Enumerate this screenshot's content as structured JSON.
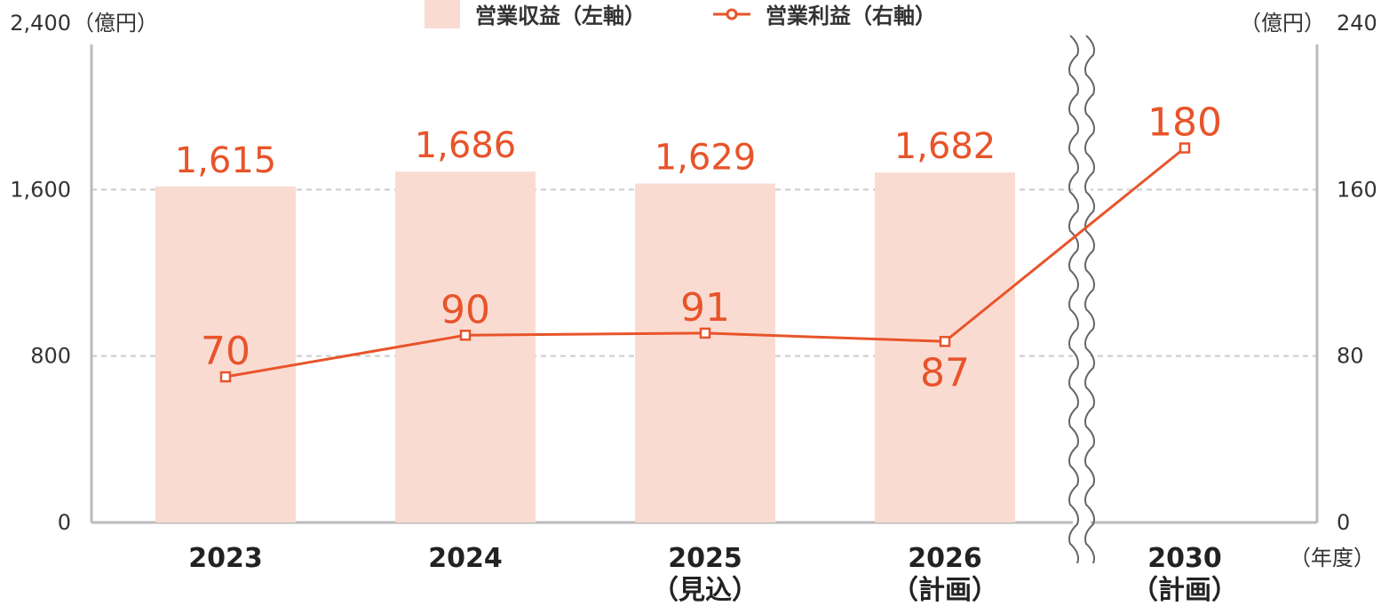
{
  "chart_data": {
    "type": "bar",
    "categories": [
      {
        "line1": "2023",
        "line2": ""
      },
      {
        "line1": "2024",
        "line2": ""
      },
      {
        "line1": "2025",
        "line2": "（見込）"
      },
      {
        "line1": "2026",
        "line2": "（計画）"
      },
      {
        "line1": "2030",
        "line2": "（計画）"
      }
    ],
    "series": [
      {
        "name": "営業収益（左軸）",
        "type": "bar",
        "axis": "left",
        "values": [
          1615,
          1686,
          1629,
          1682,
          null
        ],
        "labels": [
          "1,615",
          "1,686",
          "1,629",
          "1,682",
          ""
        ]
      },
      {
        "name": "営業利益（右軸）",
        "type": "line",
        "axis": "right",
        "values": [
          70,
          90,
          91,
          87,
          180
        ],
        "labels": [
          "70",
          "90",
          "91",
          "87",
          "180"
        ]
      }
    ],
    "left_axis": {
      "unit": "（億円）",
      "range": [
        0,
        2400
      ],
      "ticks": [
        "0",
        "800",
        "1,600",
        "2,400"
      ],
      "tick_values": [
        0,
        800,
        1600,
        2400
      ]
    },
    "right_axis": {
      "unit": "（億円）",
      "range": [
        0,
        240
      ],
      "ticks": [
        "0",
        "80",
        "160",
        "240"
      ],
      "tick_values": [
        0,
        80,
        160,
        240
      ]
    },
    "x_axis_unit": "（年度）",
    "axis_break": "between 2026 and 2030",
    "grid": true,
    "legend_position": "top-center",
    "colors": {
      "bar": "#fadbd2",
      "line": "#e8542a",
      "grid": "#cccccc",
      "axis": "#bbbbbb",
      "break": "#666666"
    }
  }
}
